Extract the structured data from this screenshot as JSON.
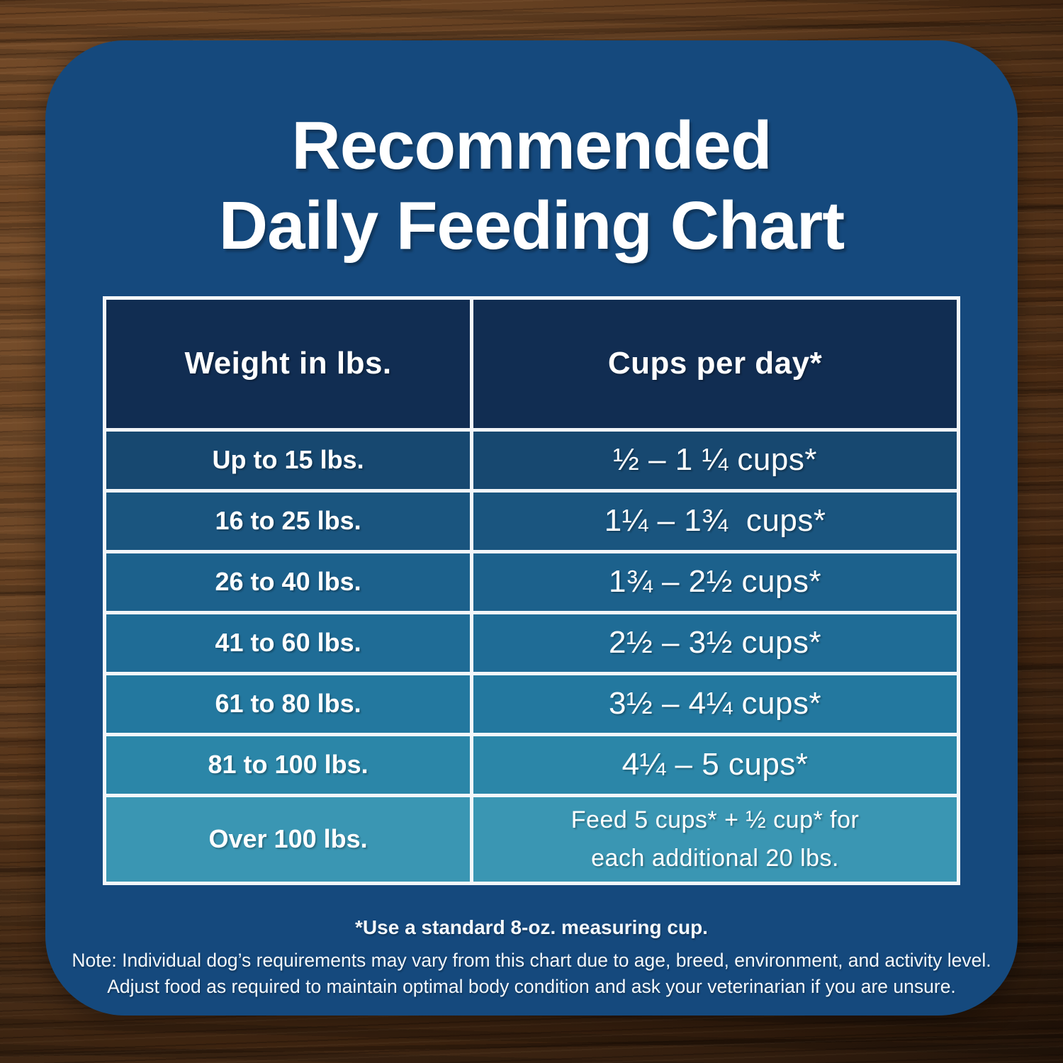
{
  "card": {
    "bg": "#15497D",
    "title": "Recommended\nDaily Feeding Chart"
  },
  "table": {
    "border_color": "#F3F6F9",
    "header": {
      "bg": "#112D52",
      "weight_label": "Weight in lbs.",
      "cups_label": "Cups per day*"
    },
    "rows": [
      {
        "weight": "Up to 15 lbs.",
        "cups": "½ – 1 ¼ cups*",
        "bg": "#174870"
      },
      {
        "weight": "16 to 25 lbs.",
        "cups": "1¼ – 1¾  cups*",
        "bg": "#1A557F"
      },
      {
        "weight": "26 to 40 lbs.",
        "cups": "1¾ – 2½ cups*",
        "bg": "#1C618C"
      },
      {
        "weight": "41 to 60 lbs.",
        "cups": "2½ – 3½ cups*",
        "bg": "#1F6C96"
      },
      {
        "weight": "61 to 80 lbs.",
        "cups": "3½ – 4¼ cups*",
        "bg": "#23789F"
      },
      {
        "weight": "81 to 100 lbs.",
        "cups": "4¼ – 5 cups*",
        "bg": "#2B86A8"
      },
      {
        "weight": "Over 100 lbs.",
        "cups": "Feed 5 cups* + ½ cup* for\neach additional 20 lbs.",
        "bg": "#3A96B3"
      }
    ]
  },
  "footnotes": {
    "bold": "*Use a standard 8-oz. measuring cup.",
    "note": "Note: Individual dog’s requirements may vary from this chart due to age, breed, environment, and activity level.\nAdjust food as required to maintain optimal body condition and ask your veterinarian if you are unsure."
  },
  "chart_data": {
    "type": "table",
    "title": "Recommended Daily Feeding Chart",
    "columns": [
      "Weight in lbs.",
      "Cups per day*"
    ],
    "rows": [
      [
        "Up to 15 lbs.",
        "½ – 1 ¼ cups*"
      ],
      [
        "16 to 25 lbs.",
        "1¼ – 1¾ cups*"
      ],
      [
        "26 to 40 lbs.",
        "1¾ – 2½ cups*"
      ],
      [
        "41 to 60 lbs.",
        "2½ – 3½ cups*"
      ],
      [
        "61 to 80 lbs.",
        "3½ – 4¼ cups*"
      ],
      [
        "81 to 100 lbs.",
        "4¼ – 5 cups*"
      ],
      [
        "Over 100 lbs.",
        "Feed 5 cups* + ½ cup* for each additional 20 lbs."
      ]
    ],
    "row_colors": [
      "#174870",
      "#1A557F",
      "#1C618C",
      "#1F6C96",
      "#23789F",
      "#2B86A8",
      "#3A96B3"
    ],
    "header_color": "#112D52",
    "footnotes": [
      "*Use a standard 8-oz. measuring cup.",
      "Note: Individual dog’s requirements may vary from this chart due to age, breed, environment, and activity level.",
      "Adjust food as required to maintain optimal body condition and ask your veterinarian if you are unsure."
    ]
  }
}
